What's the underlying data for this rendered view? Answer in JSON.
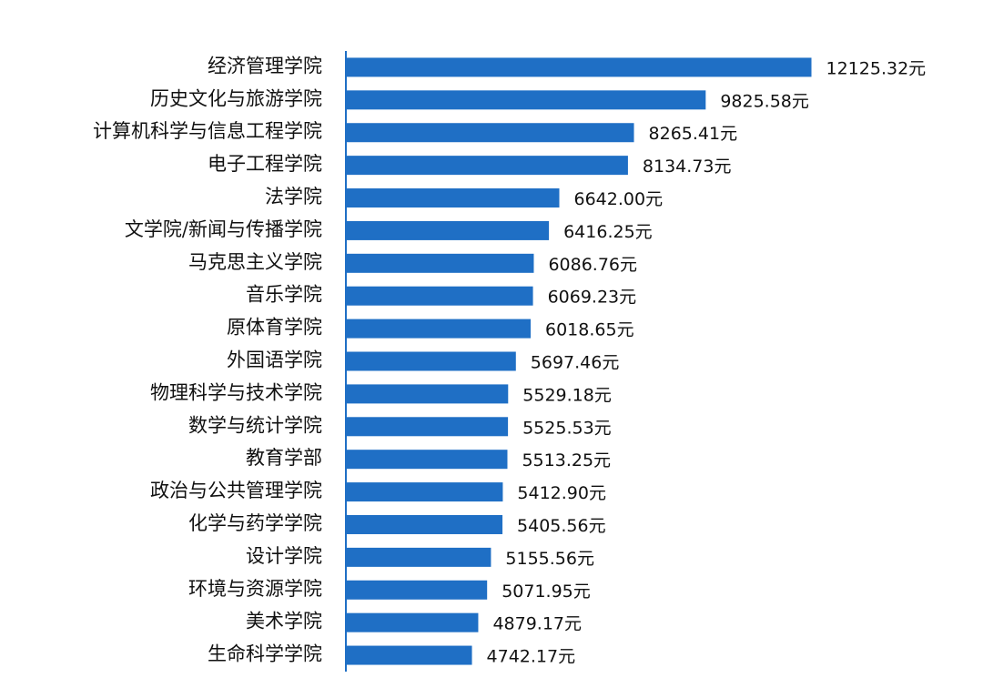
{
  "chart_data": {
    "type": "hbar",
    "categories": [
      "经济管理学院",
      "历史文化与旅游学院",
      "计算机科学与信息工程学院",
      "电子工程学院",
      "法学院",
      "文学院/新闻与传播学院",
      "马克思主义学院",
      "音乐学院",
      "原体育学院",
      "外国语学院",
      "物理科学与技术学院",
      "数学与统计学院",
      "教育学部",
      "政治与公共管理学院",
      "化学与药学学院",
      "设计学院",
      "环境与资源学院",
      "美术学院",
      "生命科学学院"
    ],
    "values": [
      12125.32,
      9825.58,
      8265.41,
      8134.73,
      6642.0,
      6416.25,
      6086.76,
      6069.23,
      6018.65,
      5697.46,
      5529.18,
      5525.53,
      5513.25,
      5412.9,
      5405.56,
      5155.56,
      5071.95,
      4879.17,
      4742.17
    ],
    "value_labels": [
      "12125.32元",
      "9825.58元",
      "8265.41元",
      "8134.73元",
      "6642.00元",
      "6416.25元",
      "6086.76元",
      "6069.23元",
      "6018.65元",
      "5697.46元",
      "5529.18元",
      "5525.53元",
      "5513.25元",
      "5412.90元",
      "5405.56元",
      "5155.56元",
      "5071.95元",
      "4879.17元",
      "4742.17元"
    ],
    "color": "#1f6fc5",
    "xlim": [
      2000,
      13000
    ]
  }
}
